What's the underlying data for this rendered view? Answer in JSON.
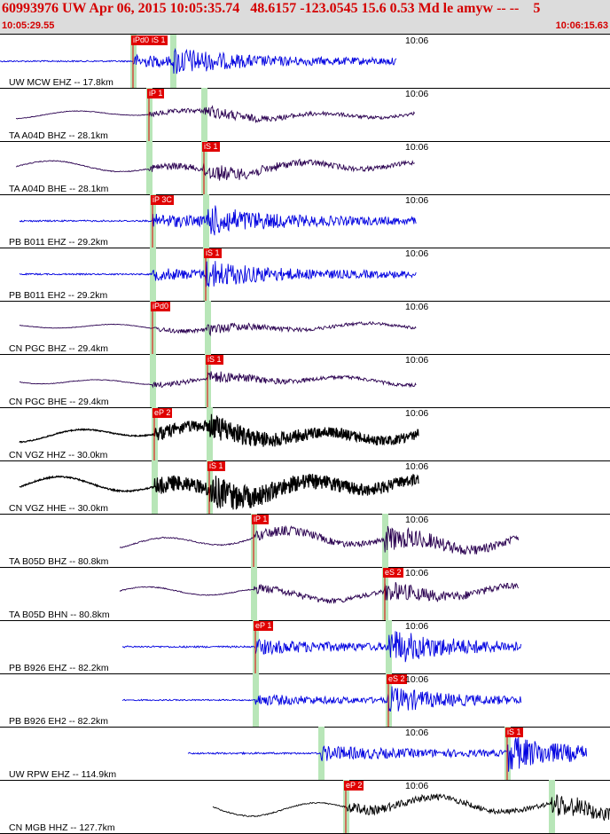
{
  "header": {
    "title": "60993976 UW Apr 06, 2015 10:05:35.74   48.6157 -123.0545 15.6 0.53 Md le amyw -- --    5",
    "time_start": "10:05:29.55",
    "time_end": "10:06:15.63"
  },
  "colors": {
    "header_bg": "#dcdcdc",
    "header_text": "#d40000",
    "pick_bg": "#e00000",
    "green_band": "#b8e6b8",
    "trace_blue": "#0000e0",
    "trace_purple": "#2a0050",
    "trace_black": "#000000"
  },
  "traces": [
    {
      "label": "UW MCW EHZ -- 17.8km",
      "time_mark": "10:06",
      "color": "blue",
      "pick": "iPd0",
      "pick2": "iS 1",
      "start": 0,
      "end": 448,
      "p": 150,
      "s": 195,
      "amp": 0.5,
      "style": "spiky"
    },
    {
      "label": "TA A04D BHZ -- 28.1km",
      "time_mark": "10:06",
      "color": "purple",
      "pick": "iP 1",
      "start": 18,
      "end": 468,
      "p": 168,
      "s": 230,
      "amp": 0.35,
      "style": "wavy"
    },
    {
      "label": "TA A04D BHE -- 28.1km",
      "time_mark": "10:06",
      "color": "purple",
      "pick": "iS 1",
      "start": 18,
      "end": 468,
      "p": 168,
      "s": 230,
      "amp": 0.5,
      "style": "wavy"
    },
    {
      "label": "PB B011 EHZ -- 29.2km",
      "time_mark": "10:06",
      "color": "blue",
      "pick": "iP 3C",
      "start": 22,
      "end": 470,
      "p": 172,
      "s": 232,
      "amp": 0.55,
      "style": "spiky"
    },
    {
      "label": "PB B011 EH2 -- 29.2km",
      "time_mark": "10:06",
      "color": "blue",
      "pick": "iS 1",
      "start": 22,
      "end": 470,
      "p": 172,
      "s": 232,
      "amp": 0.5,
      "style": "spiky"
    },
    {
      "label": "CN PGC BHZ -- 29.4km",
      "time_mark": "10:06",
      "color": "purple",
      "pick": "iPd0",
      "start": 22,
      "end": 470,
      "p": 172,
      "s": 234,
      "amp": 0.3,
      "style": "wavy"
    },
    {
      "label": "CN PGC BHE -- 29.4km",
      "time_mark": "10:06",
      "color": "purple",
      "pick": "iS 1",
      "start": 22,
      "end": 470,
      "p": 172,
      "s": 234,
      "amp": 0.35,
      "style": "wavy"
    },
    {
      "label": "CN VGZ HHZ -- 30.0km",
      "time_mark": "10:06",
      "color": "black",
      "pick": "eP 2",
      "start": 22,
      "end": 472,
      "p": 174,
      "s": 236,
      "amp": 0.6,
      "style": "heavy"
    },
    {
      "label": "CN VGZ HHE -- 30.0km",
      "time_mark": "10:06",
      "color": "black",
      "pick": "iS 1",
      "start": 22,
      "end": 472,
      "p": 174,
      "s": 236,
      "amp": 0.75,
      "style": "heavy"
    },
    {
      "label": "TA B05D BHZ -- 80.8km",
      "time_mark": "10:06",
      "color": "purple",
      "pick": "iP 1",
      "start": 135,
      "end": 585,
      "p": 286,
      "s": 434,
      "amp": 0.7,
      "style": "wavy"
    },
    {
      "label": "TA B05D BHN -- 80.8km",
      "time_mark": "10:06",
      "color": "purple",
      "pick": "eS 2",
      "start": 135,
      "end": 585,
      "p": 286,
      "s": 434,
      "amp": 0.55,
      "style": "wavy"
    },
    {
      "label": "PB B926 EHZ -- 82.2km",
      "time_mark": "10:06",
      "color": "blue",
      "pick": "eP 1",
      "start": 138,
      "end": 588,
      "p": 288,
      "s": 438,
      "amp": 0.6,
      "style": "spiky"
    },
    {
      "label": "PB B926 EH2 -- 82.2km",
      "time_mark": "10:06",
      "color": "blue",
      "pick": "eS 2",
      "start": 138,
      "end": 588,
      "p": 288,
      "s": 438,
      "amp": 0.45,
      "style": "spiky"
    },
    {
      "label": "UW RPW EHZ -- 114.9km",
      "time_mark": "10:06",
      "color": "blue",
      "pick": "iS 1",
      "start": 212,
      "end": 662,
      "p": 362,
      "s": 572,
      "amp": 0.6,
      "style": "spiky"
    },
    {
      "label": "CN MGB HHZ -- 127.7km",
      "time_mark": "10:06",
      "color": "black",
      "pick": "eP 2",
      "start": 240,
      "end": 688,
      "p": 390,
      "s": 622,
      "amp": 0.7,
      "style": "wavy"
    }
  ]
}
